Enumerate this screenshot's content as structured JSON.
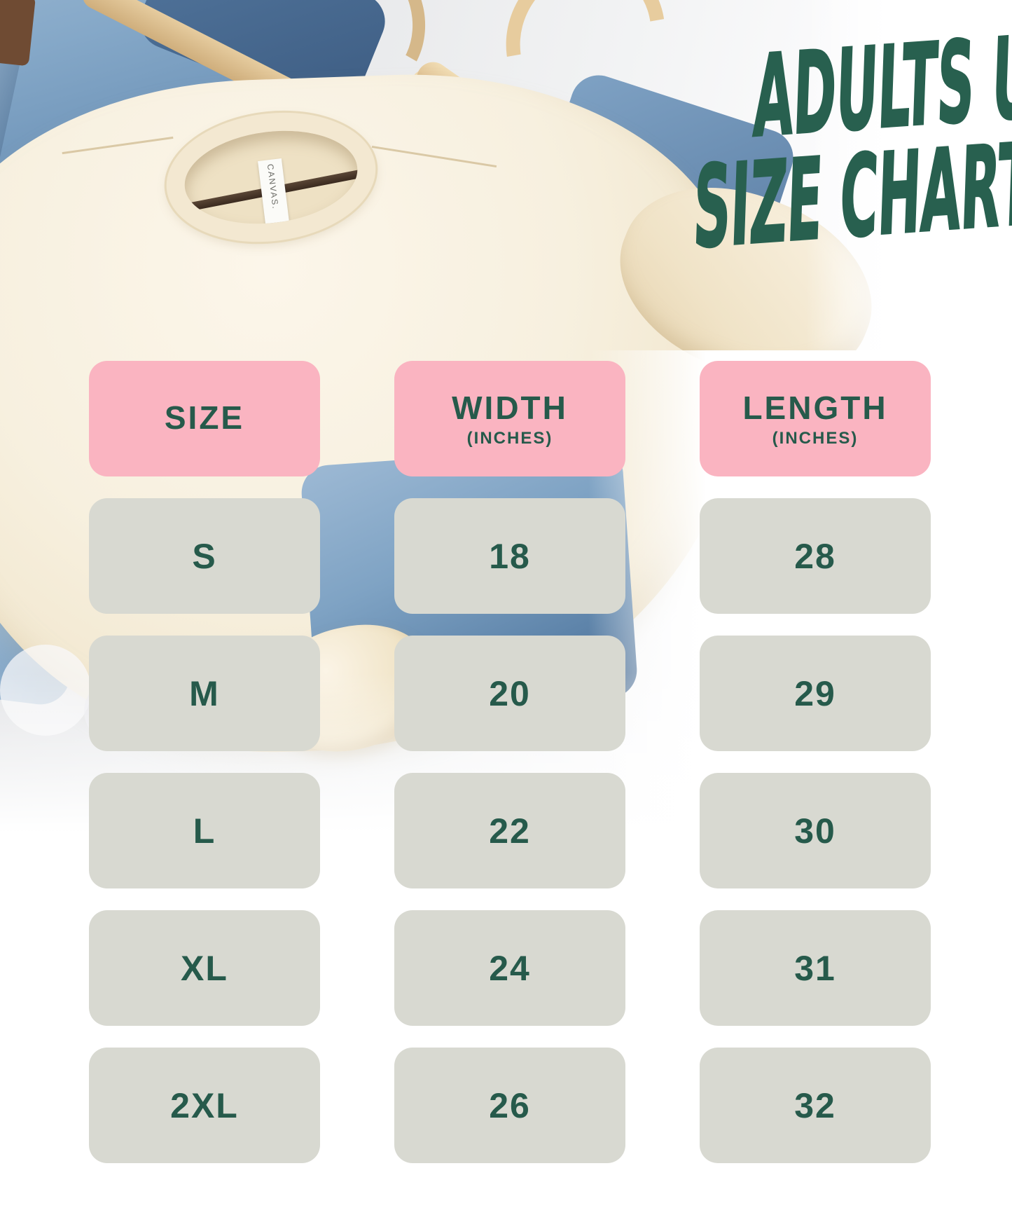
{
  "title": {
    "line1": "ADULTS UNISEX",
    "line2": "SIZE CHART"
  },
  "photo": {
    "shirt_label_text": "CANVAS."
  },
  "table": {
    "columns": [
      {
        "label": "SIZE",
        "sub": ""
      },
      {
        "label": "WIDTH",
        "sub": "(INCHES)"
      },
      {
        "label": "LENGTH",
        "sub": "(INCHES)"
      }
    ],
    "rows": [
      {
        "size": "S",
        "width": "18",
        "length": "28"
      },
      {
        "size": "M",
        "width": "20",
        "length": "29"
      },
      {
        "size": "L",
        "width": "22",
        "length": "30"
      },
      {
        "size": "XL",
        "width": "24",
        "length": "31"
      },
      {
        "size": "2XL",
        "width": "26",
        "length": "32"
      }
    ]
  },
  "colors": {
    "accent_green": "#28604f",
    "table_text_green": "#265a4b",
    "header_pink": "#fab4c1",
    "cell_gray": "#d8d9d1",
    "denim_blue": "#6f94ba",
    "wood_tan": "#e3c79a",
    "shirt_cream": "#f6efde"
  },
  "chart_data": {
    "type": "table",
    "title": "ADULTS UNISEX SIZE CHART",
    "columns": [
      "SIZE",
      "WIDTH (INCHES)",
      "LENGTH (INCHES)"
    ],
    "rows": [
      [
        "S",
        18,
        28
      ],
      [
        "M",
        20,
        29
      ],
      [
        "L",
        22,
        30
      ],
      [
        "XL",
        24,
        31
      ],
      [
        "2XL",
        26,
        32
      ]
    ]
  }
}
